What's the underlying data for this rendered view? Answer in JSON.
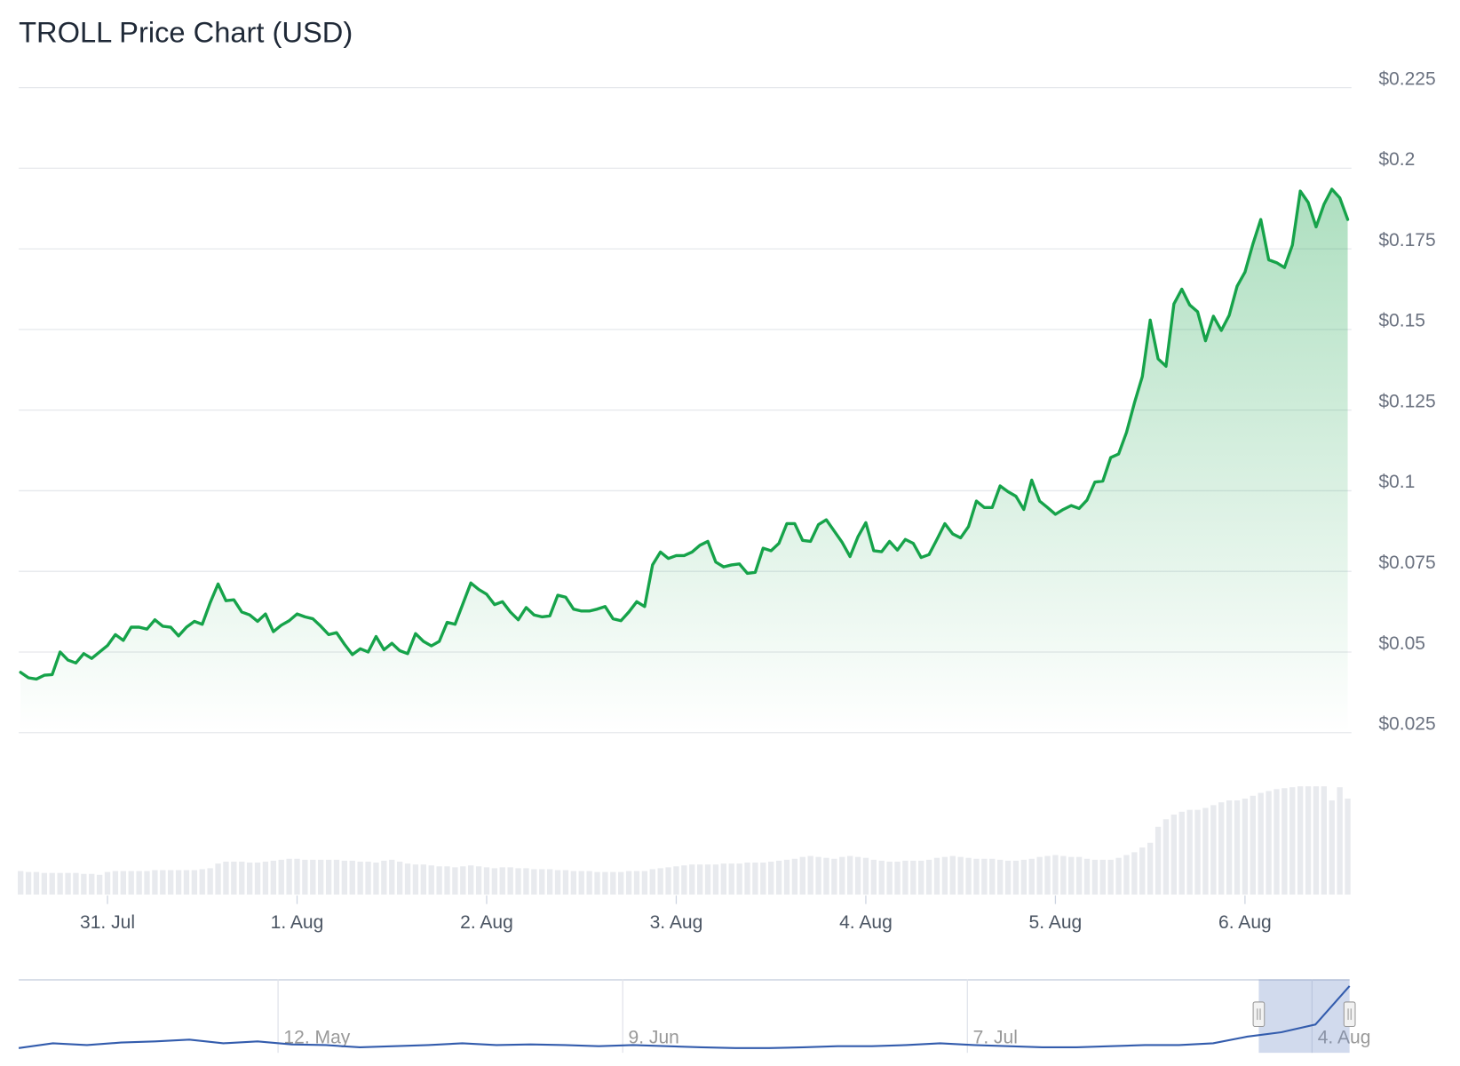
{
  "chart_data": {
    "type": "line",
    "title": "TROLL Price Chart (USD)",
    "series": [
      {
        "color": "#16a34a",
        "values": [
          0.0437,
          0.042,
          0.0416,
          0.0428,
          0.043,
          0.05,
          0.0475,
          0.0466,
          0.0495,
          0.048,
          0.05,
          0.052,
          0.0554,
          0.0536,
          0.0577,
          0.0577,
          0.0571,
          0.06,
          0.058,
          0.0577,
          0.055,
          0.0577,
          0.0595,
          0.0586,
          0.0653,
          0.0711,
          0.0659,
          0.0662,
          0.0624,
          0.0615,
          0.0595,
          0.0618,
          0.0563,
          0.0583,
          0.0597,
          0.0618,
          0.0609,
          0.0603,
          0.058,
          0.0554,
          0.056,
          0.0524,
          0.0492,
          0.051,
          0.05,
          0.0548,
          0.0507,
          0.0527,
          0.0504,
          0.0495,
          0.0557,
          0.0533,
          0.0519,
          0.0533,
          0.0592,
          0.0586,
          0.065,
          0.0714,
          0.0694,
          0.0679,
          0.0647,
          0.0656,
          0.0624,
          0.06,
          0.0638,
          0.0615,
          0.0609,
          0.0612,
          0.0676,
          0.067,
          0.0633,
          0.0627,
          0.0627,
          0.0633,
          0.0641,
          0.0603,
          0.0597,
          0.0624,
          0.0656,
          0.0641,
          0.077,
          0.081,
          0.079,
          0.0799,
          0.0799,
          0.081,
          0.0831,
          0.0843,
          0.0779,
          0.0764,
          0.077,
          0.0773,
          0.0744,
          0.0747,
          0.0822,
          0.0814,
          0.0837,
          0.0898,
          0.0898,
          0.0846,
          0.0843,
          0.0895,
          0.091,
          0.0875,
          0.084,
          0.0796,
          0.0857,
          0.0901,
          0.0814,
          0.0811,
          0.0843,
          0.0816,
          0.0849,
          0.0837,
          0.0793,
          0.0802,
          0.0849,
          0.0898,
          0.0866,
          0.0854,
          0.0889,
          0.0968,
          0.0948,
          0.0948,
          0.1015,
          0.0997,
          0.0983,
          0.0942,
          0.1033,
          0.0968,
          0.0948,
          0.0927,
          0.0942,
          0.0954,
          0.0945,
          0.0971,
          0.1027,
          0.103,
          0.1103,
          0.1114,
          0.1181,
          0.1272,
          0.1354,
          0.1529,
          0.1409,
          0.1386,
          0.1579,
          0.1625,
          0.1576,
          0.1555,
          0.1465,
          0.1541,
          0.1497,
          0.1544,
          0.1634,
          0.1678,
          0.1765,
          0.1841,
          0.1716,
          0.1707,
          0.1692,
          0.1762,
          0.1929,
          0.1894,
          0.1818,
          0.1888,
          0.1935,
          0.1908,
          0.1841
        ]
      }
    ],
    "xlim": [
      0,
      168
    ],
    "xticks": [
      {
        "value": 11,
        "label": "31. Jul"
      },
      {
        "value": 35,
        "label": "1. Aug"
      },
      {
        "value": 59,
        "label": "2. Aug"
      },
      {
        "value": 83,
        "label": "3. Aug"
      },
      {
        "value": 107,
        "label": "4. Aug"
      },
      {
        "value": 131,
        "label": "5. Aug"
      },
      {
        "value": 155,
        "label": "6. Aug"
      }
    ],
    "ylim": [
      0.025,
      0.225
    ],
    "yticks": [
      {
        "value": 0.025,
        "label": "$0.025"
      },
      {
        "value": 0.05,
        "label": "$0.05"
      },
      {
        "value": 0.075,
        "label": "$0.075"
      },
      {
        "value": 0.1,
        "label": "$0.1"
      },
      {
        "value": 0.125,
        "label": "$0.125"
      },
      {
        "value": 0.15,
        "label": "$0.15"
      },
      {
        "value": 0.175,
        "label": "$0.175"
      },
      {
        "value": 0.2,
        "label": "$0.2"
      },
      {
        "value": 0.225,
        "label": "$0.225"
      }
    ],
    "grid": true,
    "volume": {
      "color": "#e8eaee",
      "ylim": [
        0,
        120
      ],
      "values": [
        25,
        24,
        24,
        23,
        23,
        23,
        23,
        23,
        22,
        22,
        21,
        24,
        25,
        25,
        25,
        25,
        25,
        26,
        26,
        26,
        26,
        26,
        26,
        27,
        28,
        33,
        35,
        35,
        35,
        34,
        34,
        35,
        36,
        37,
        38,
        38,
        37,
        37,
        37,
        37,
        37,
        36,
        36,
        35,
        35,
        34,
        36,
        37,
        35,
        33,
        32,
        32,
        31,
        30,
        30,
        29,
        30,
        31,
        30,
        29,
        28,
        29,
        29,
        28,
        28,
        27,
        27,
        27,
        26,
        26,
        25,
        25,
        25,
        24,
        24,
        24,
        24,
        25,
        25,
        25,
        27,
        28,
        29,
        30,
        31,
        32,
        32,
        32,
        32,
        33,
        33,
        33,
        34,
        34,
        34,
        35,
        36,
        37,
        38,
        40,
        41,
        40,
        39,
        38,
        40,
        41,
        40,
        39,
        37,
        36,
        35,
        35,
        36,
        36,
        36,
        37,
        39,
        40,
        41,
        40,
        39,
        38,
        38,
        38,
        37,
        36,
        36,
        37,
        38,
        40,
        41,
        42,
        41,
        40,
        40,
        38,
        37,
        37,
        37,
        39,
        42,
        45,
        50,
        55,
        72,
        80,
        85,
        88,
        90,
        90,
        92,
        95,
        98,
        100,
        100,
        102,
        105,
        108,
        110,
        112,
        113,
        114,
        115,
        115,
        115,
        115,
        100,
        114,
        102
      ]
    },
    "navigator": {
      "color": "#335cad",
      "xlim": [
        0,
        39
      ],
      "ylim": [
        0,
        0.2
      ],
      "xticks": [
        {
          "value": 7.6,
          "label": "12. May"
        },
        {
          "value": 17.7,
          "label": "9. Jun"
        },
        {
          "value": 27.8,
          "label": "7. Jul"
        },
        {
          "value": 37.9,
          "label": "4. Aug"
        }
      ],
      "values": [
        0.013,
        0.026,
        0.021,
        0.028,
        0.031,
        0.036,
        0.026,
        0.031,
        0.023,
        0.021,
        0.015,
        0.018,
        0.021,
        0.026,
        0.021,
        0.023,
        0.021,
        0.018,
        0.021,
        0.018,
        0.015,
        0.013,
        0.013,
        0.015,
        0.018,
        0.018,
        0.021,
        0.026,
        0.021,
        0.018,
        0.015,
        0.015,
        0.018,
        0.021,
        0.021,
        0.026,
        0.044,
        0.056,
        0.077,
        0.182
      ]
    }
  }
}
